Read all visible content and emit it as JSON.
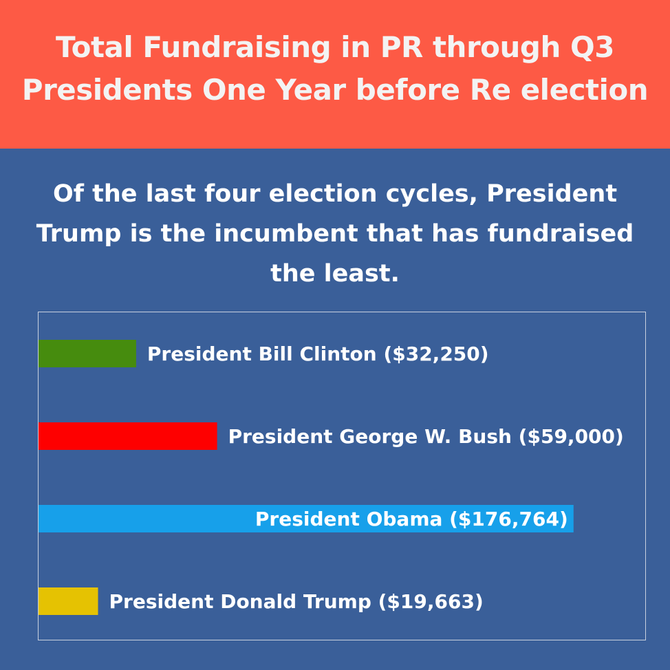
{
  "header": {
    "title_line1": "Total Fundraising in PR through Q3",
    "title_line2": "Presidents One Year before Re election",
    "background": "#fd5a45"
  },
  "subtitle": "Of the last four election cycles, President Trump is the incumbent that has fundraised the least.",
  "chart_data": {
    "type": "bar",
    "orientation": "horizontal",
    "title": "Total Fundraising in PR through Q3 Presidents One Year before Re election",
    "categories": [
      "President Bill Clinton",
      "President George W. Bush",
      "President Obama",
      "President Donald Trump"
    ],
    "values": [
      32250,
      59000,
      176764,
      19663
    ],
    "labels": [
      "President Bill Clinton ($32,250)",
      "President George W. Bush ($59,000)",
      "President Obama ($176,764)",
      "President Donald Trump ($19,663)"
    ],
    "colors": [
      "#468c0e",
      "#fe0000",
      "#17a0ea",
      "#e5c202"
    ],
    "xlim": [
      0,
      200000
    ],
    "grid": false,
    "legend": "none"
  }
}
